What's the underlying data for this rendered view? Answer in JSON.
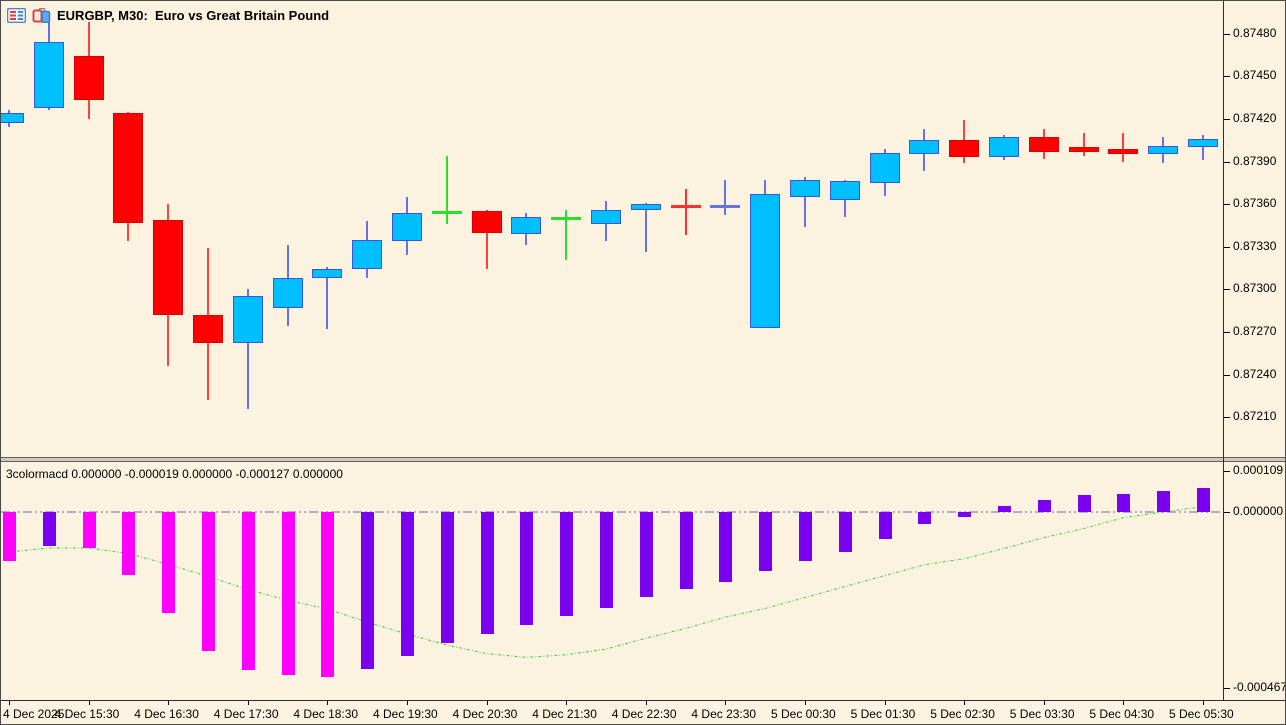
{
  "window": {
    "title": "EURGBP, M30:  Euro vs Great Britain Pound",
    "symbol": "EURGBP",
    "timeframe": "M30",
    "indicator_label": "3colormacd 0.000000 -0.000019 0.000000 -0.000127 0.000000",
    "icons": [
      "chart-list-icon",
      "chart-candles-icon"
    ]
  },
  "colors": {
    "background": "#FBF2E0",
    "bull_body": "#00BFFF",
    "bull_border": "#3A57D7",
    "bear_body": "#FF0000",
    "bear_border": "#DD0000",
    "wick_bull": "#6673E0",
    "wick_bear": "#FF4040",
    "doji_green": "#2ADF2A",
    "doji_blue": "#6673E0",
    "doji_red": "#FF3030",
    "macd_falling": "#FF00FF",
    "macd_rising": "#7B00F0",
    "signal_line": "#3FCF3F",
    "zero_line": "#9A94C2",
    "axis_text": "#000000",
    "frame": "#2E2E2E"
  },
  "chart_data": [
    {
      "type": "candlestick",
      "title": "EURGBP, M30:  Euro vs Great Britain Pound",
      "y_axis": {
        "range": {
          "min": 0.87182,
          "max": 0.87503
        },
        "ticks": [
          0.8748,
          0.8745,
          0.8742,
          0.8739,
          0.8736,
          0.8733,
          0.873,
          0.8727,
          0.8724,
          0.8721
        ]
      },
      "x_labels": [
        "4 Dec 2025",
        "4 Dec 15:30",
        "4 Dec 16:30",
        "4 Dec 17:30",
        "4 Dec 18:30",
        "4 Dec 19:30",
        "4 Dec 20:30",
        "4 Dec 21:30",
        "4 Dec 22:30",
        "4 Dec 23:30",
        "5 Dec 00:30",
        "5 Dec 01:30",
        "5 Dec 02:30",
        "5 Dec 03:30",
        "5 Dec 04:30",
        "5 Dec 05:30"
      ],
      "candles": [
        {
          "time": "4 Dec 14:30",
          "o": 0.87417,
          "h": 0.87426,
          "l": 0.87414,
          "c": 0.87424,
          "kind": "bull"
        },
        {
          "time": "4 Dec 15:00",
          "o": 0.87428,
          "h": 0.87489,
          "l": 0.87426,
          "c": 0.87474,
          "kind": "bull"
        },
        {
          "time": "4 Dec 15:30",
          "o": 0.87464,
          "h": 0.87488,
          "l": 0.8742,
          "c": 0.87433,
          "kind": "bear"
        },
        {
          "time": "4 Dec 16:00",
          "o": 0.87424,
          "h": 0.87425,
          "l": 0.87334,
          "c": 0.87347,
          "kind": "bear"
        },
        {
          "time": "4 Dec 16:30",
          "o": 0.87349,
          "h": 0.8736,
          "l": 0.87246,
          "c": 0.87282,
          "kind": "bear"
        },
        {
          "time": "4 Dec 17:00",
          "o": 0.87282,
          "h": 0.87329,
          "l": 0.87222,
          "c": 0.87262,
          "kind": "bear"
        },
        {
          "time": "4 Dec 17:30",
          "o": 0.87262,
          "h": 0.873,
          "l": 0.87216,
          "c": 0.87295,
          "kind": "bull"
        },
        {
          "time": "4 Dec 18:00",
          "o": 0.87287,
          "h": 0.87331,
          "l": 0.87274,
          "c": 0.87308,
          "kind": "bull"
        },
        {
          "time": "4 Dec 18:30",
          "o": 0.87308,
          "h": 0.87316,
          "l": 0.87272,
          "c": 0.87314,
          "kind": "bull"
        },
        {
          "time": "4 Dec 19:00",
          "o": 0.87314,
          "h": 0.87348,
          "l": 0.87308,
          "c": 0.87335,
          "kind": "bull"
        },
        {
          "time": "4 Dec 19:30",
          "o": 0.87334,
          "h": 0.87365,
          "l": 0.87324,
          "c": 0.87354,
          "kind": "bull"
        },
        {
          "time": "4 Dec 20:00",
          "o": 0.87354,
          "h": 0.87394,
          "l": 0.87346,
          "c": 0.87354,
          "kind": "doji-green"
        },
        {
          "time": "4 Dec 20:30",
          "o": 0.87355,
          "h": 0.87356,
          "l": 0.87314,
          "c": 0.8734,
          "kind": "bear"
        },
        {
          "time": "4 Dec 21:00",
          "o": 0.87339,
          "h": 0.87354,
          "l": 0.87331,
          "c": 0.87351,
          "kind": "bull"
        },
        {
          "time": "4 Dec 21:30",
          "o": 0.8735,
          "h": 0.87356,
          "l": 0.87321,
          "c": 0.8735,
          "kind": "doji-green"
        },
        {
          "time": "4 Dec 22:00",
          "o": 0.87346,
          "h": 0.87362,
          "l": 0.87334,
          "c": 0.87356,
          "kind": "bull"
        },
        {
          "time": "4 Dec 22:30",
          "o": 0.87356,
          "h": 0.87361,
          "l": 0.87326,
          "c": 0.8736,
          "kind": "bull"
        },
        {
          "time": "4 Dec 23:00",
          "o": 0.87358,
          "h": 0.87371,
          "l": 0.87338,
          "c": 0.87358,
          "kind": "doji-red"
        },
        {
          "time": "4 Dec 23:30",
          "o": 0.87358,
          "h": 0.87377,
          "l": 0.87352,
          "c": 0.87358,
          "kind": "doji-blue"
        },
        {
          "time": "5 Dec 00:00",
          "o": 0.87273,
          "h": 0.87377,
          "l": 0.87273,
          "c": 0.87367,
          "kind": "bull"
        },
        {
          "time": "5 Dec 00:30",
          "o": 0.87365,
          "h": 0.87379,
          "l": 0.87344,
          "c": 0.87377,
          "kind": "bull"
        },
        {
          "time": "5 Dec 01:00",
          "o": 0.87363,
          "h": 0.87377,
          "l": 0.87351,
          "c": 0.87376,
          "kind": "bull"
        },
        {
          "time": "5 Dec 01:30",
          "o": 0.87375,
          "h": 0.87399,
          "l": 0.87366,
          "c": 0.87396,
          "kind": "bull"
        },
        {
          "time": "5 Dec 02:00",
          "o": 0.87395,
          "h": 0.87413,
          "l": 0.87383,
          "c": 0.87405,
          "kind": "bull"
        },
        {
          "time": "5 Dec 02:30",
          "o": 0.87405,
          "h": 0.87419,
          "l": 0.87389,
          "c": 0.87393,
          "kind": "bear"
        },
        {
          "time": "5 Dec 03:00",
          "o": 0.87393,
          "h": 0.87409,
          "l": 0.87391,
          "c": 0.87407,
          "kind": "bull"
        },
        {
          "time": "5 Dec 03:30",
          "o": 0.87407,
          "h": 0.87413,
          "l": 0.87392,
          "c": 0.87397,
          "kind": "bear"
        },
        {
          "time": "5 Dec 04:00",
          "o": 0.874,
          "h": 0.8741,
          "l": 0.87394,
          "c": 0.87397,
          "kind": "bear"
        },
        {
          "time": "5 Dec 04:30",
          "o": 0.87399,
          "h": 0.8741,
          "l": 0.8739,
          "c": 0.87395,
          "kind": "bear"
        },
        {
          "time": "5 Dec 05:00",
          "o": 0.87395,
          "h": 0.87407,
          "l": 0.87389,
          "c": 0.87401,
          "kind": "bull"
        },
        {
          "time": "5 Dec 05:30",
          "o": 0.874,
          "h": 0.87409,
          "l": 0.87391,
          "c": 0.87406,
          "kind": "bull"
        }
      ]
    },
    {
      "type": "bar",
      "name": "3colormacd",
      "y_axis": {
        "range": {
          "min": -0.000499,
          "max": 0.0001327
        },
        "ticks": [
          {
            "v": 0.000109,
            "label": "0.000109"
          },
          {
            "v": 0.0,
            "label": "0.000000"
          },
          {
            "v": -0.000467,
            "label": "-0.000467"
          }
        ]
      },
      "values": [
        -0.00013,
        -9.1e-05,
        -9.5e-05,
        -0.000167,
        -0.000267,
        -0.000369,
        -0.000419,
        -0.000434,
        -0.000437,
        -0.000418,
        -0.000383,
        -0.000347,
        -0.000325,
        -0.0003,
        -0.000277,
        -0.000254,
        -0.000226,
        -0.000204,
        -0.000186,
        -0.000157,
        -0.00013,
        -0.000106,
        -7.1e-05,
        -3.2e-05,
        -1.2e-05,
        1.6e-05,
        3.2e-05,
        4.4e-05,
        4.8e-05,
        5.7e-05,
        6.4e-05
      ],
      "bar_trend": [
        "falling",
        "rising",
        "falling",
        "falling",
        "falling",
        "falling",
        "falling",
        "falling",
        "falling",
        "rising",
        "rising",
        "rising",
        "rising",
        "rising",
        "rising",
        "rising",
        "rising",
        "rising",
        "rising",
        "rising",
        "rising",
        "rising",
        "rising",
        "rising",
        "rising",
        "rising",
        "rising",
        "rising",
        "rising",
        "rising",
        "rising"
      ],
      "signal": [
        -0.000106,
        -9.56e-05,
        -9.56e-05,
        -0.00011,
        -0.000139,
        -0.000171,
        -0.000206,
        -0.000234,
        -0.000258,
        -0.000292,
        -0.000324,
        -0.000353,
        -0.000376,
        -0.000386,
        -0.000379,
        -0.000364,
        -0.000335,
        -0.000309,
        -0.000279,
        -0.000256,
        -0.000227,
        -0.000198,
        -0.000169,
        -0.00014,
        -0.000124,
        -9.7e-05,
        -6.8e-05,
        -4.4e-05,
        -1.5e-05,
        0.0,
        1.4e-05
      ]
    }
  ]
}
